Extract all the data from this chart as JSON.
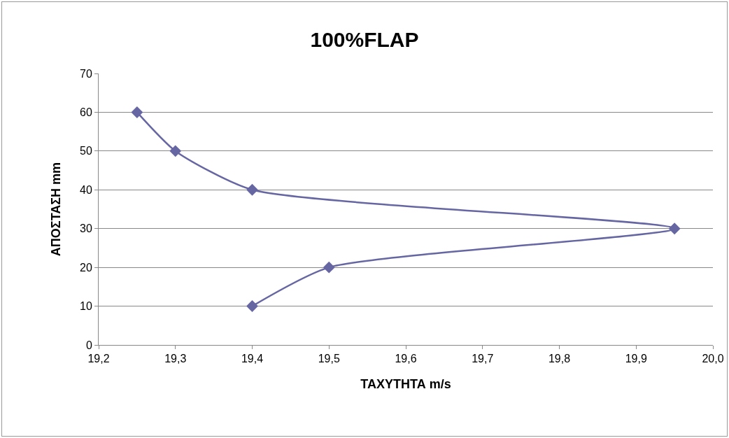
{
  "chart_data": {
    "type": "line",
    "title": "100%FLAP",
    "xlabel": "ΤΑΧΥΤΗΤΑ m/s",
    "ylabel": "ΑΠΟΣΤΑΣΗ mm",
    "x": [
      19.4,
      19.5,
      19.95,
      19.4,
      19.3,
      19.25
    ],
    "series": [
      {
        "color": "#6666a3",
        "values": [
          10,
          20,
          30,
          40,
          50,
          60
        ]
      }
    ],
    "xlim": [
      19.2,
      20.0
    ],
    "xticks": [
      {
        "value": 19.2,
        "label": "19,2"
      },
      {
        "value": 19.3,
        "label": "19,3"
      },
      {
        "value": 19.4,
        "label": "19,4"
      },
      {
        "value": 19.5,
        "label": "19,5"
      },
      {
        "value": 19.6,
        "label": "19,6"
      },
      {
        "value": 19.7,
        "label": "19,7"
      },
      {
        "value": 19.8,
        "label": "19,8"
      },
      {
        "value": 19.9,
        "label": "19,9"
      },
      {
        "value": 20.0,
        "label": "20,0"
      }
    ],
    "ylim": [
      0,
      70
    ],
    "yticks": [
      0,
      10,
      20,
      30,
      40,
      50,
      60,
      70
    ],
    "grid": "y",
    "marker": "diamond",
    "line_style": "solid"
  }
}
